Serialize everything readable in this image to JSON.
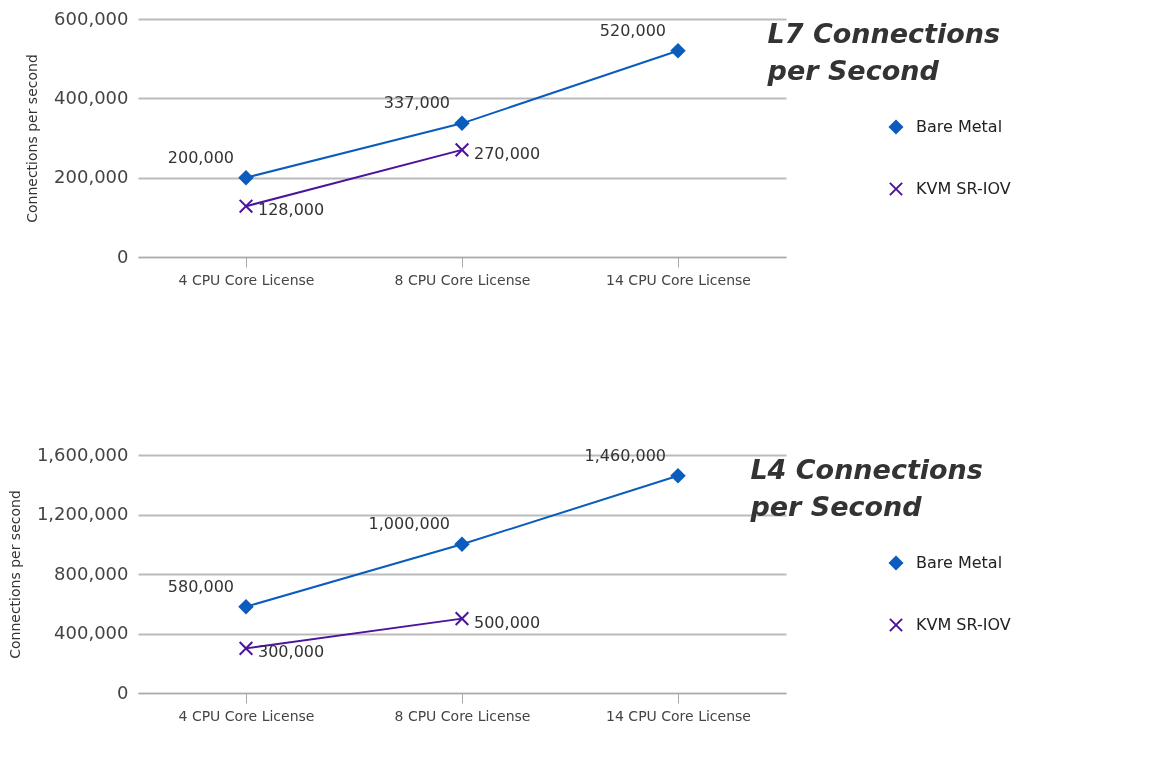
{
  "chart_data": [
    {
      "type": "line",
      "title": "L7 Connections per Second",
      "ylabel": "Connections per second",
      "categories": [
        "4 CPU Core License",
        "8 CPU Core License",
        "14 CPU Core License"
      ],
      "series": [
        {
          "name": "Bare Metal",
          "color": "#0b5cbd",
          "marker": "diamond",
          "values": [
            200000,
            337000,
            520000
          ],
          "value_labels": [
            "200,000",
            "337,000",
            "520,000"
          ]
        },
        {
          "name": "KVM SR-IOV",
          "color": "#4b149c",
          "marker": "cross",
          "values": [
            128000,
            270000,
            null
          ],
          "value_labels": [
            "128,000",
            "270,000",
            null
          ]
        }
      ],
      "ylim": [
        0,
        600000
      ],
      "yticks": [
        {
          "value": 0,
          "label": "0"
        },
        {
          "value": 200000,
          "label": "200,000"
        },
        {
          "value": 400000,
          "label": "400,000"
        },
        {
          "value": 600000,
          "label": "600,000"
        }
      ],
      "grid": "y",
      "legend": "right"
    },
    {
      "type": "line",
      "title": "L4 Connections per Second",
      "ylabel": "Connections per second",
      "categories": [
        "4 CPU Core License",
        "8 CPU Core License",
        "14 CPU Core License"
      ],
      "series": [
        {
          "name": "Bare Metal",
          "color": "#0b5cbd",
          "marker": "diamond",
          "values": [
            580000,
            1000000,
            1460000
          ],
          "value_labels": [
            "580,000",
            "1,000,000",
            "1,460,000"
          ]
        },
        {
          "name": "KVM SR-IOV",
          "color": "#4b149c",
          "marker": "cross",
          "values": [
            300000,
            500000,
            null
          ],
          "value_labels": [
            "300,000",
            "500,000",
            null
          ]
        }
      ],
      "ylim": [
        0,
        1600000
      ],
      "yticks": [
        {
          "value": 0,
          "label": "0"
        },
        {
          "value": 400000,
          "label": "400,000"
        },
        {
          "value": 800000,
          "label": "800,000"
        },
        {
          "value": 1200000,
          "label": "1,200,000"
        },
        {
          "value": 1600000,
          "label": "1,600,000"
        }
      ],
      "grid": "y",
      "legend": "right"
    }
  ]
}
